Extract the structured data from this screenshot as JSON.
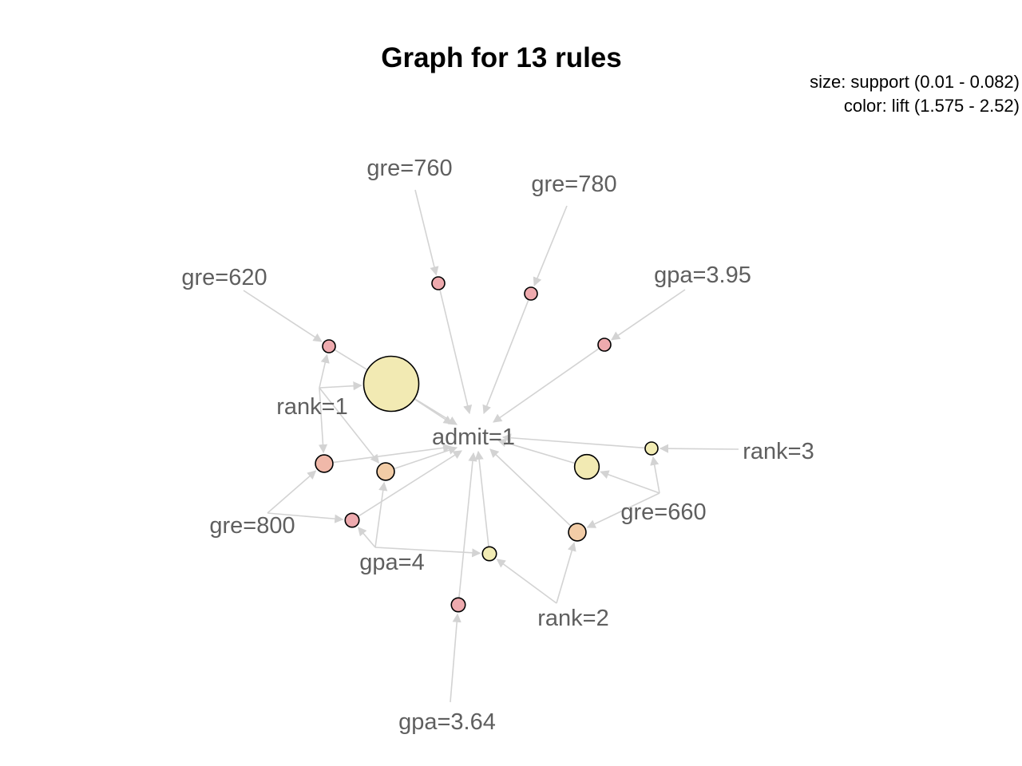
{
  "title": "Graph for 13 rules",
  "legend": {
    "size": "size: support (0.01 - 0.082)",
    "color": "color: lift (1.575 - 2.52)"
  },
  "colors": {
    "edge": "#d3d3d3",
    "label": "#5f5f5f",
    "lift_low": "#f2ecb4",
    "lift_mid": "#f2c8a4",
    "lift_high": "#eeaaae"
  },
  "items": {
    "gre760": "gre=760",
    "gre780": "gre=780",
    "gre620": "gre=620",
    "gpa395": "gpa=3.95",
    "rank1": "rank=1",
    "admit1": "admit=1",
    "rank3": "rank=3",
    "gre660": "gre=660",
    "gre800": "gre=800",
    "gpa4": "gpa=4",
    "rank2": "rank=2",
    "gpa364": "gpa=3.64"
  },
  "rules": [
    {
      "id": "r1",
      "lhs": [
        "gre=760"
      ],
      "rhs": "admit=1",
      "support": 0.01,
      "lift": 2.52
    },
    {
      "id": "r2",
      "lhs": [
        "gre=780"
      ],
      "rhs": "admit=1",
      "support": 0.01,
      "lift": 2.52
    },
    {
      "id": "r3",
      "lhs": [
        "gpa=3.95"
      ],
      "rhs": "admit=1",
      "support": 0.01,
      "lift": 2.52
    },
    {
      "id": "r4",
      "lhs": [
        "gre=620",
        "rank=1"
      ],
      "rhs": "admit=1",
      "support": 0.01,
      "lift": 2.52
    },
    {
      "id": "r5",
      "lhs": [
        "rank=1"
      ],
      "rhs": "admit=1",
      "support": 0.082,
      "lift": 1.6
    },
    {
      "id": "r6",
      "lhs": [
        "rank=1",
        "gre=800"
      ],
      "rhs": "admit=1",
      "support": 0.018,
      "lift": 2.3
    },
    {
      "id": "r7",
      "lhs": [
        "rank=1",
        "gpa=4"
      ],
      "rhs": "admit=1",
      "support": 0.018,
      "lift": 2.0
    },
    {
      "id": "r8",
      "lhs": [
        "gre=800",
        "gpa=4"
      ],
      "rhs": "admit=1",
      "support": 0.012,
      "lift": 2.52
    },
    {
      "id": "r9",
      "lhs": [
        "gpa=4",
        "rank=2"
      ],
      "rhs": "admit=1",
      "support": 0.012,
      "lift": 1.575
    },
    {
      "id": "r10",
      "lhs": [
        "gpa=3.64"
      ],
      "rhs": "admit=1",
      "support": 0.012,
      "lift": 2.52
    },
    {
      "id": "r11",
      "lhs": [
        "rank=2",
        "gre=660"
      ],
      "rhs": "admit=1",
      "support": 0.018,
      "lift": 2.0
    },
    {
      "id": "r12",
      "lhs": [
        "gre=660"
      ],
      "rhs": "admit=1",
      "support": 0.03,
      "lift": 1.6
    },
    {
      "id": "r13",
      "lhs": [
        "rank=3",
        "gre=660"
      ],
      "rhs": "admit=1",
      "support": 0.01,
      "lift": 1.575
    }
  ]
}
